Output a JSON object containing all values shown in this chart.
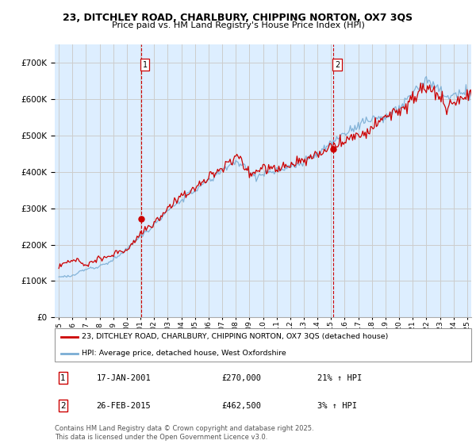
{
  "title": "23, DITCHLEY ROAD, CHARLBURY, CHIPPING NORTON, OX7 3QS",
  "subtitle": "Price paid vs. HM Land Registry's House Price Index (HPI)",
  "legend_line1": "23, DITCHLEY ROAD, CHARLBURY, CHIPPING NORTON, OX7 3QS (detached house)",
  "legend_line2": "HPI: Average price, detached house, West Oxfordshire",
  "footer": "Contains HM Land Registry data © Crown copyright and database right 2025.\nThis data is licensed under the Open Government Licence v3.0.",
  "annotation1": {
    "label": "1",
    "date": "17-JAN-2001",
    "price": "£270,000",
    "hpi": "21% ↑ HPI",
    "x_year": 2001.04
  },
  "annotation2": {
    "label": "2",
    "date": "26-FEB-2015",
    "price": "£462,500",
    "hpi": "3% ↑ HPI",
    "x_year": 2015.15
  },
  "sale1_value": 270000,
  "sale2_value": 462500,
  "ylim": [
    0,
    750000
  ],
  "xlim_start": 1994.7,
  "xlim_end": 2025.3,
  "red_color": "#cc0000",
  "blue_color": "#7aadd4",
  "vline_color": "#cc0000",
  "bg_fill_color": "#ddeeff",
  "background_color": "#ffffff",
  "grid_color": "#cccccc"
}
